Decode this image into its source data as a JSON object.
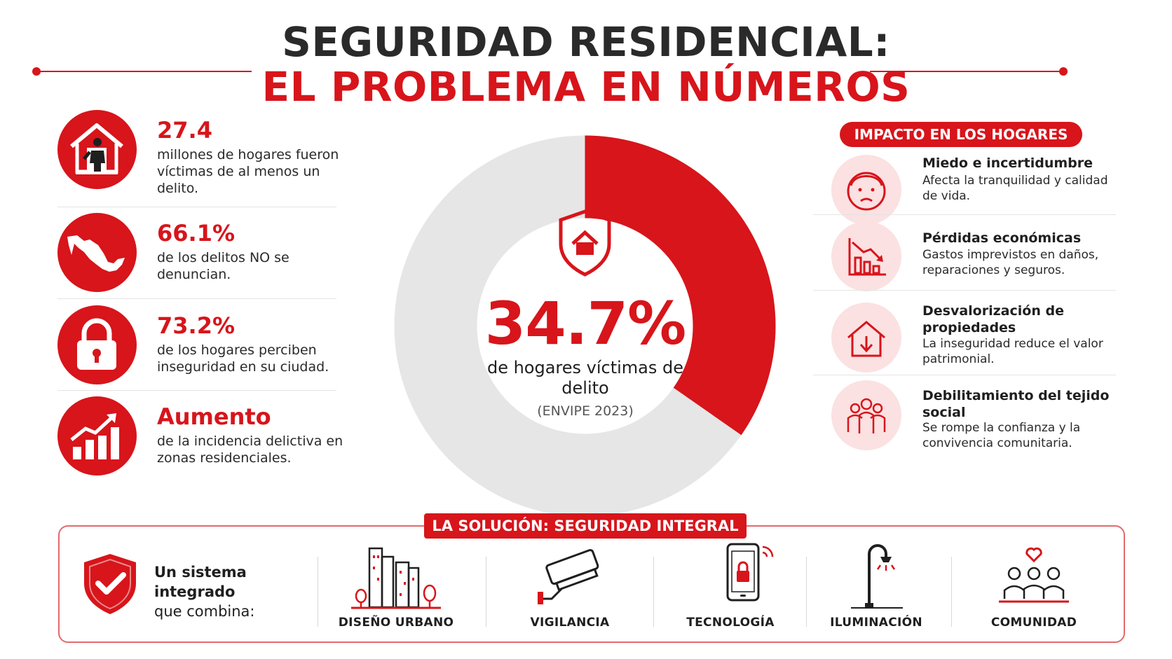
{
  "header": {
    "title_line1": "SEGURIDAD RESIDENCIAL:",
    "title_line2": "EL PROBLEMA EN NÚMEROS"
  },
  "stats": [
    {
      "number": "27.4",
      "description": "millones de hogares fueron víctimas de al menos un delito.",
      "icon": "house-intruder-icon"
    },
    {
      "number": "66.1%",
      "description": "de los delitos NO se denuncian.",
      "icon": "mexico-map-icon"
    },
    {
      "number": "73.2%",
      "description": "de los hogares perciben inseguridad en su ciudad.",
      "icon": "padlock-icon"
    },
    {
      "number": "Aumento",
      "description": "de la incidencia delictiva en zonas residenciales.",
      "icon": "rising-chart-icon"
    }
  ],
  "donut": {
    "value_percent": 34.7,
    "value_label": "34.7%",
    "description": "de hogares víctimas de delito",
    "source": "(ENVIPE 2023)",
    "icon": "shield-house-icon",
    "colors": {
      "highlight": "#d7151b",
      "rest": "#e6e6e6"
    }
  },
  "impact": {
    "title": "IMPACTO EN LOS HOGARES",
    "items": [
      {
        "heading": "Miedo e incertidumbre",
        "text": "Afecta la tranquilidad y calidad de vida.",
        "icon": "worried-face-icon"
      },
      {
        "heading": "Pérdidas económicas",
        "text": "Gastos imprevistos en daños, reparaciones y seguros.",
        "icon": "falling-chart-icon"
      },
      {
        "heading": "Desvalorización de propiedades",
        "text": "La inseguridad reduce el valor patrimonial.",
        "icon": "house-down-arrow-icon"
      },
      {
        "heading": "Debilitamiento del tejido social",
        "text": "Se rompe la confianza y la convivencia comunitaria.",
        "icon": "people-group-icon"
      }
    ]
  },
  "solution": {
    "title": "LA SOLUCIÓN: SEGURIDAD INTEGRAL",
    "intro_line1": "Un sistema integrado",
    "intro_line2": "que combina:",
    "items": [
      {
        "label": "DISEÑO URBANO",
        "icon": "city-buildings-icon"
      },
      {
        "label": "VIGILANCIA",
        "icon": "security-camera-icon"
      },
      {
        "label": "TECNOLOGÍA",
        "icon": "smartphone-lock-icon"
      },
      {
        "label": "ILUMINACIÓN",
        "icon": "street-lamp-icon"
      },
      {
        "label": "COMUNIDAD",
        "icon": "community-heart-icon"
      }
    ]
  },
  "colors": {
    "accent": "#d7151b",
    "soft_accent": "#fbe1e2",
    "text": "#1f1f1f"
  }
}
